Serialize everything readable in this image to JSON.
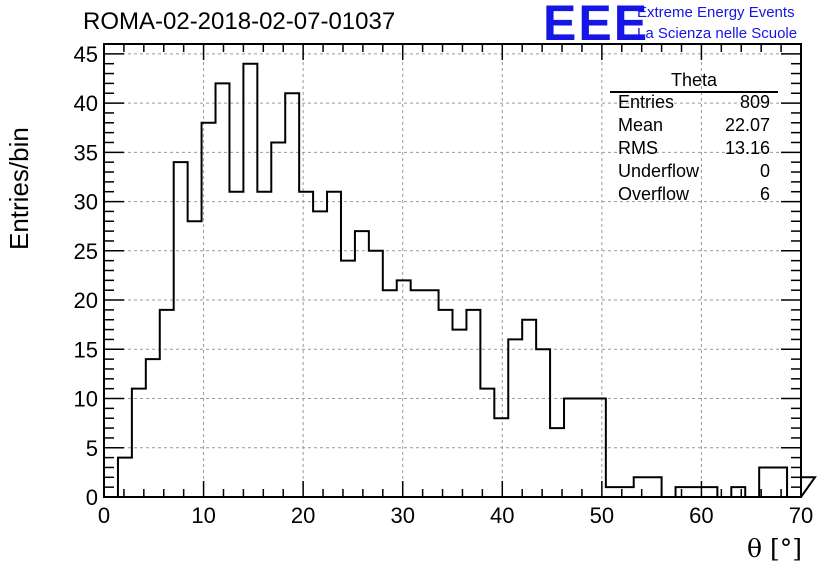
{
  "title": "ROMA-02-2018-02-07-01037",
  "logo": {
    "letters": "EEE",
    "line1": "Extreme Energy Events",
    "line2": "La Scienza nelle Scuole"
  },
  "stats_box": {
    "title": "Theta",
    "rows": [
      {
        "label": "Entries",
        "value": "809"
      },
      {
        "label": "Mean",
        "value": "22.07"
      },
      {
        "label": "RMS",
        "value": "13.16"
      },
      {
        "label": "Underflow",
        "value": "0"
      },
      {
        "label": "Overflow",
        "value": "6"
      }
    ]
  },
  "chart_data": {
    "type": "bar",
    "histogram": true,
    "title": "ROMA-02-2018-02-07-01037",
    "xlabel": "θ [°]",
    "ylabel": "Entries/bin",
    "xlim": [
      0,
      70
    ],
    "ylim": [
      0,
      46
    ],
    "bin_width": 1.4,
    "bin_edges_start": 1.4,
    "xticks": [
      0,
      10,
      20,
      30,
      40,
      50,
      60,
      70
    ],
    "yticks": [
      0,
      5,
      10,
      15,
      20,
      25,
      30,
      35,
      40,
      45
    ],
    "grid": true,
    "line_color": "#000000",
    "values": [
      4,
      11,
      14,
      19,
      34,
      28,
      38,
      42,
      31,
      44,
      31,
      36,
      41,
      31,
      29,
      31,
      24,
      27,
      25,
      21,
      22,
      21,
      21,
      19,
      17,
      19,
      11,
      8,
      16,
      18,
      15,
      7,
      10,
      10,
      10,
      1,
      1,
      2,
      2,
      0,
      1,
      1,
      1,
      0,
      1,
      0,
      3,
      3,
      0,
      2
    ]
  }
}
